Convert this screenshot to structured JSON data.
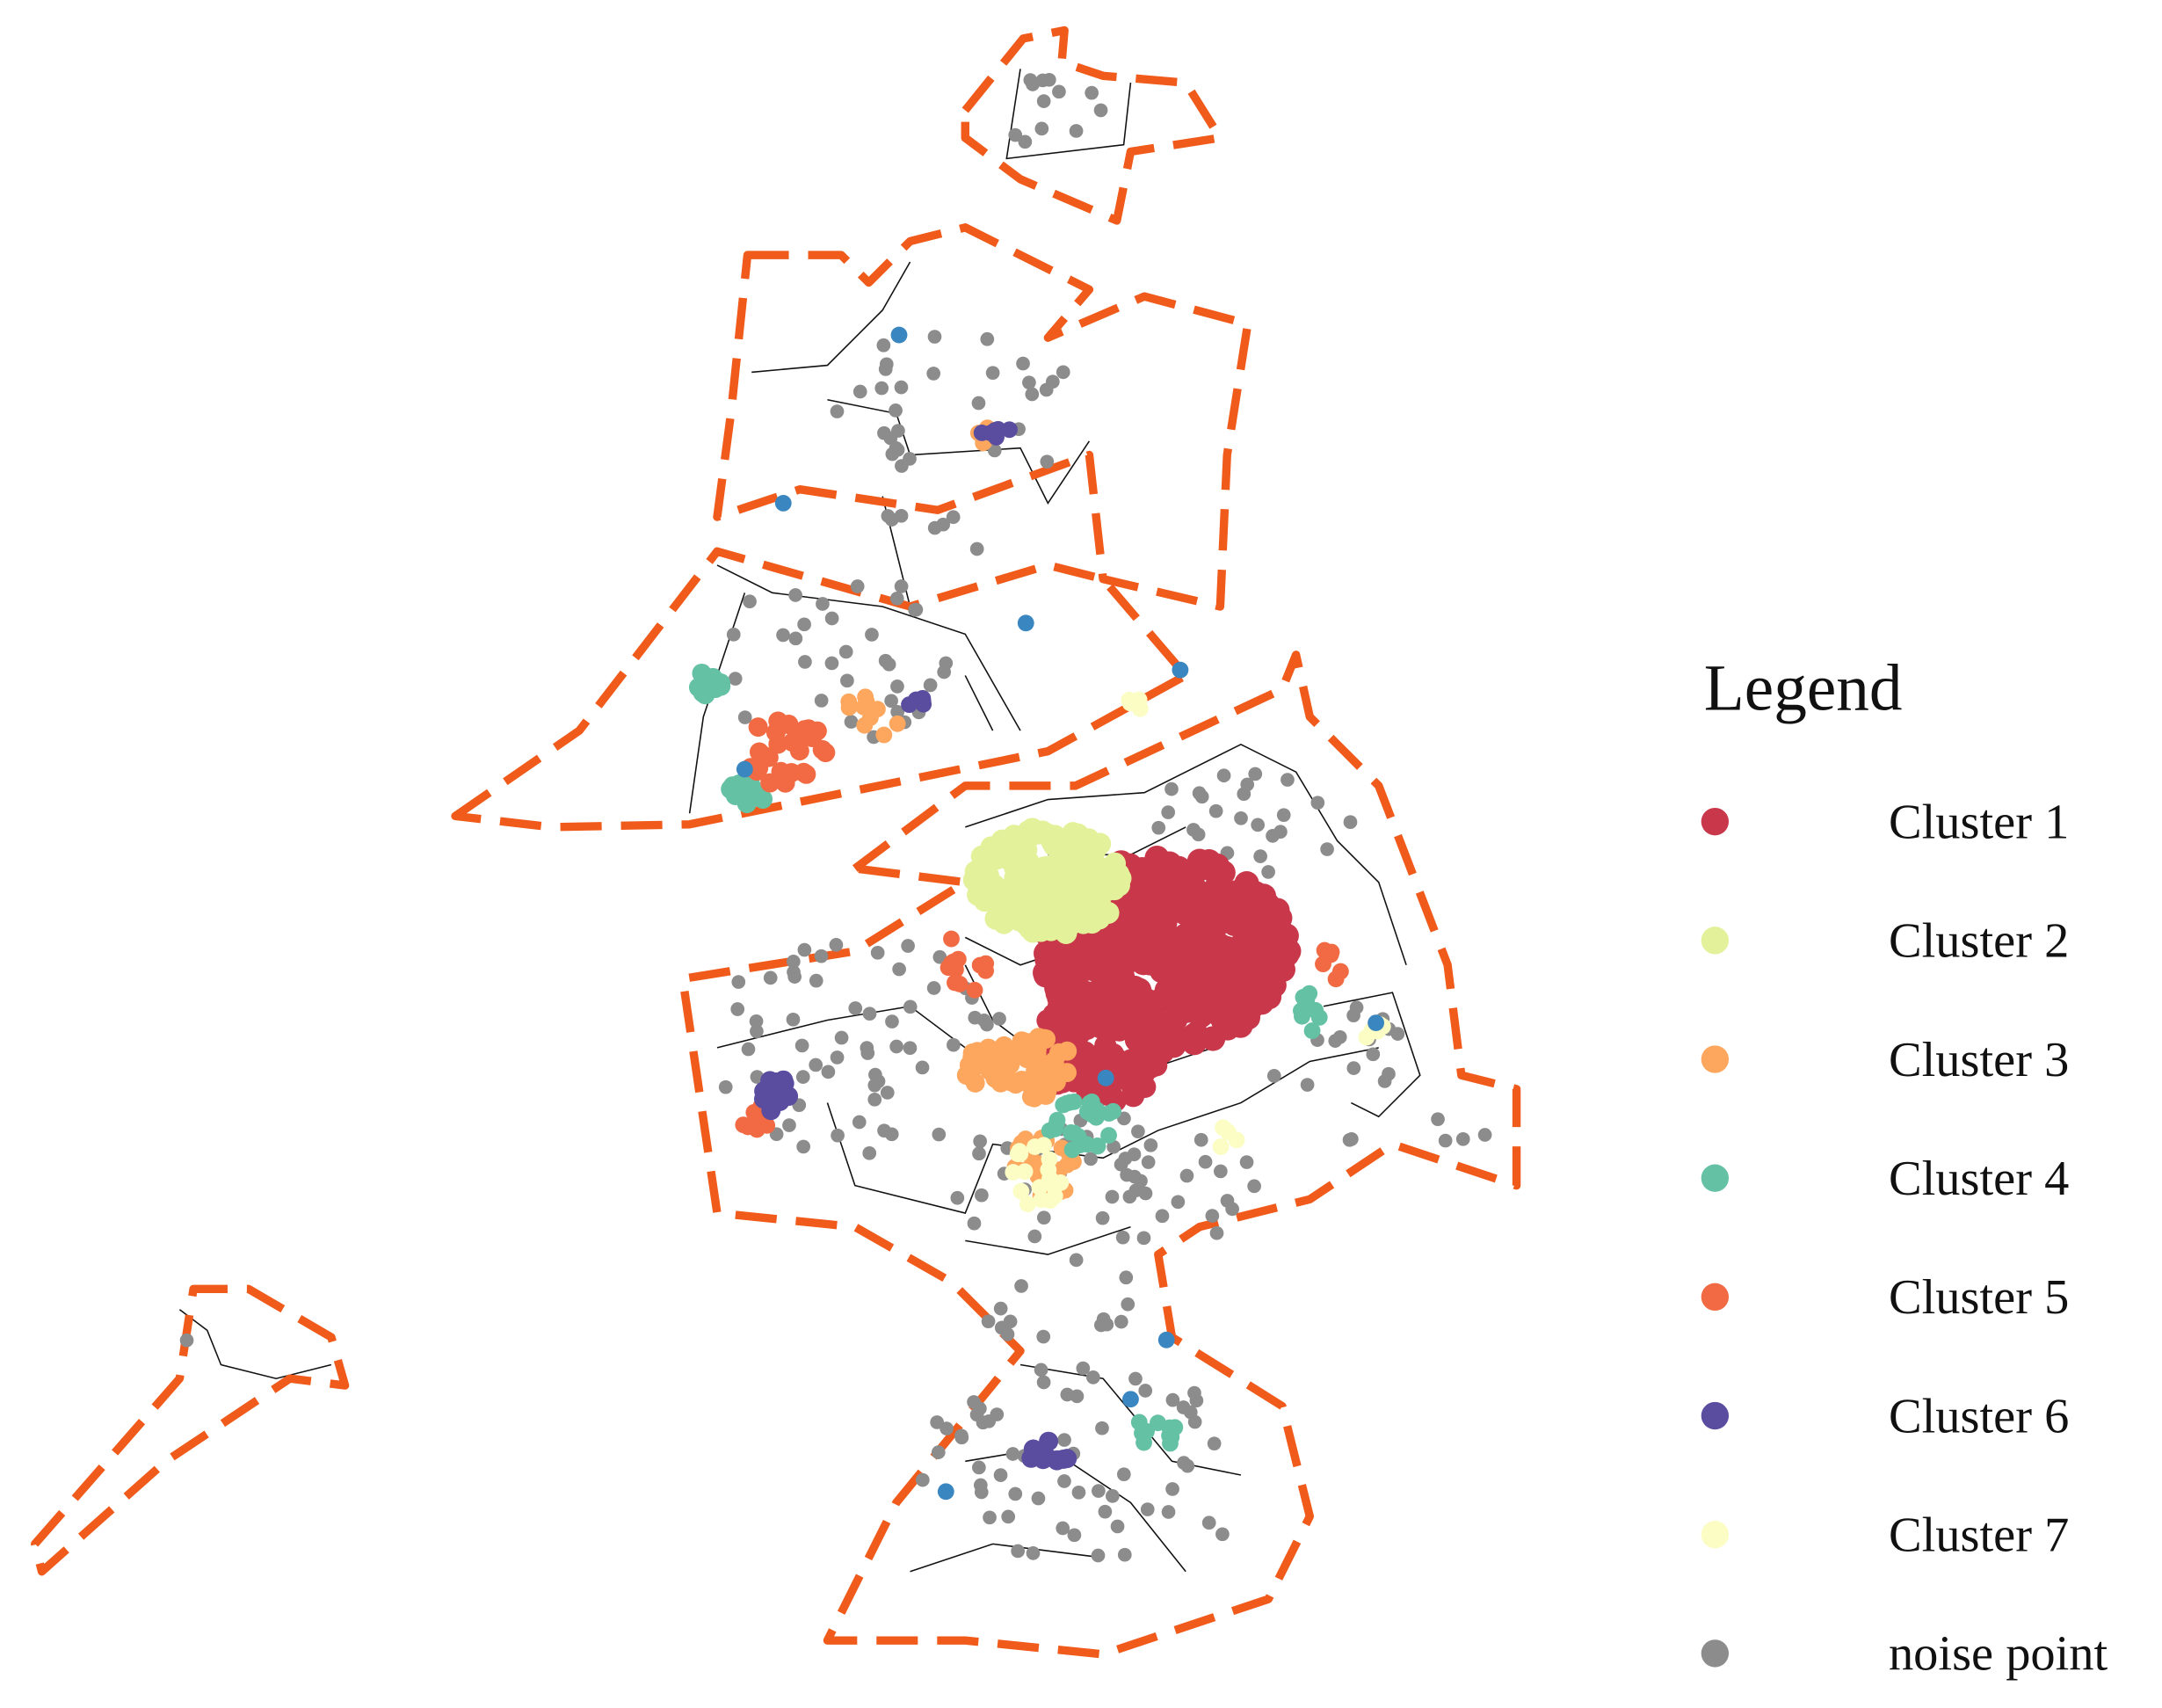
{
  "legend": {
    "title": "Legend",
    "items": [
      {
        "label": "Cluster 1",
        "color": "#c8384a"
      },
      {
        "label": "Cluster 2",
        "color": "#e3f29a"
      },
      {
        "label": "Cluster 3",
        "color": "#fca65e"
      },
      {
        "label": "Cluster 4",
        "color": "#64c1a4"
      },
      {
        "label": "Cluster 5",
        "color": "#f26a43"
      },
      {
        "label": "Cluster 6",
        "color": "#5a4da0"
      },
      {
        "label": "Cluster 7",
        "color": "#fbfdc4"
      },
      {
        "label": "noise point",
        "color": "#8c8c8c"
      }
    ]
  }
}
